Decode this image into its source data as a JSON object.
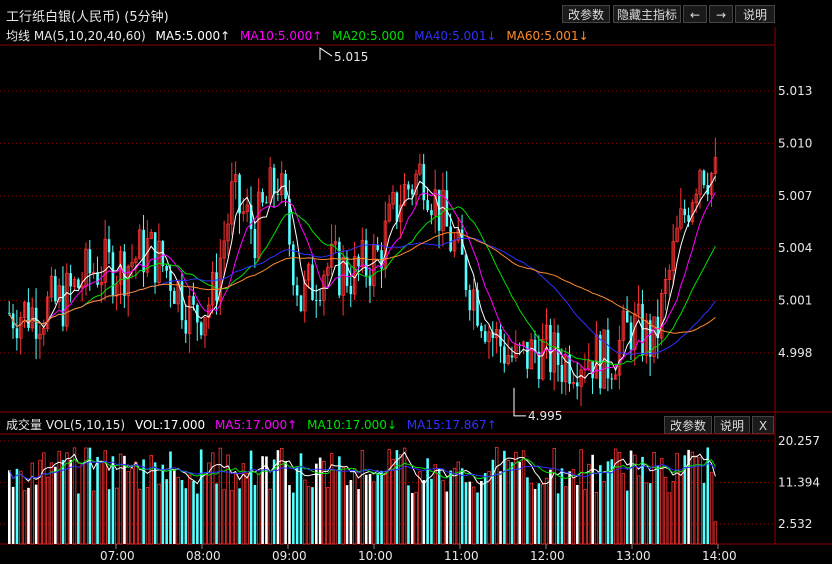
{
  "header": {
    "title": "工行纸白银(人民币) (5分钟)",
    "buttons": {
      "params": "改参数",
      "hide_main": "隐藏主指标",
      "prev_arrow": "←",
      "next_arrow": "→",
      "help": "说明"
    }
  },
  "price_panel": {
    "legend": {
      "label": "均线 MA(5,10,20,40,60)",
      "ma5": "MA5:5.000↑",
      "ma10": "MA10:5.000↑",
      "ma20": "MA20:5.000",
      "ma40": "MA40:5.001↓",
      "ma60": "MA60:5.001↓"
    },
    "high_label": "5.015",
    "low_label": "4.995",
    "y_ticks": [
      "5.013",
      "5.010",
      "5.007",
      "5.004",
      "5.001",
      "4.998"
    ]
  },
  "volume_panel": {
    "legend": {
      "label": "成交量 VOL(5,10,15)",
      "vol": "VOL:17.000",
      "ma5": "MA5:17.000↑",
      "ma10": "MA10:17.000↓",
      "ma15": "MA15:17.867↑"
    },
    "buttons": {
      "params": "改参数",
      "help": "说明",
      "close": "X"
    },
    "y_ticks": [
      "20.257",
      "11.394",
      "2.532"
    ]
  },
  "x_axis": {
    "ticks": [
      "07:00",
      "08:00",
      "09:00",
      "10:00",
      "11:00",
      "12:00",
      "13:00",
      "14:00"
    ]
  },
  "colors": {
    "up": "#ff3232",
    "down": "#54ffff",
    "ma5": "#ffffff",
    "ma10": "#ff00ff",
    "ma20": "#00e000",
    "ma40": "#3030ff",
    "ma60": "#ff8c2a",
    "grid": "#8b0000"
  }
}
